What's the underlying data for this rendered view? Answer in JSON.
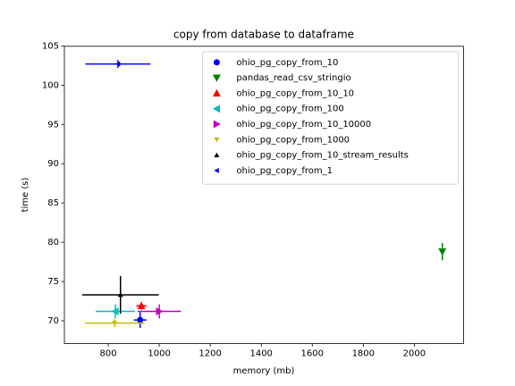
{
  "chart_data": {
    "type": "scatter",
    "title": "copy from database to dataframe",
    "x_label": "memory (mb)",
    "y_label": "time (s)",
    "xlim": [
      628,
      2193
    ],
    "ylim": [
      67.1,
      104.95
    ],
    "xticks": [
      800,
      1000,
      1200,
      1400,
      1600,
      1800,
      2000
    ],
    "yticks": [
      70,
      75,
      80,
      85,
      90,
      95,
      100,
      105
    ],
    "legend": "upper right",
    "grid": false,
    "series": [
      {
        "name": "ohio_pg_copy_from_10",
        "color": "#0000ff",
        "marker": "o",
        "x": [
          925
        ],
        "values": [
          70.1
        ],
        "xerr": [
          25
        ],
        "yerr": [
          1.0
        ]
      },
      {
        "name": "pandas_read_csv_stringio",
        "color": "#008000",
        "marker": "v",
        "x": [
          2110
        ],
        "values": [
          78.8
        ],
        "xerr": [
          8
        ],
        "yerr": [
          1.1
        ]
      },
      {
        "name": "ohio_pg_copy_from_10_10",
        "color": "#ff0000",
        "marker": "^",
        "x": [
          930
        ],
        "values": [
          71.9
        ],
        "xerr": [
          20
        ],
        "yerr": [
          0.5
        ]
      },
      {
        "name": "ohio_pg_copy_from_100",
        "color": "#00bfbf",
        "marker": "<",
        "x": [
          828
        ],
        "values": [
          71.2
        ],
        "xerr": [
          77
        ],
        "yerr": [
          0.9
        ]
      },
      {
        "name": "ohio_pg_copy_from_10_10000",
        "color": "#bf00bf",
        "marker": ">",
        "x": [
          1000
        ],
        "values": [
          71.2
        ],
        "xerr": [
          85
        ],
        "yerr": [
          0.9
        ]
      },
      {
        "name": "ohio_pg_copy_from_1000",
        "color": "#bfbf00",
        "marker": "1",
        "x": [
          825
        ],
        "values": [
          69.7
        ],
        "xerr": [
          117
        ],
        "yerr": [
          0.5
        ]
      },
      {
        "name": "ohio_pg_copy_from_10_stream_results",
        "color": "#000000",
        "marker": "2",
        "x": [
          848
        ],
        "values": [
          73.3
        ],
        "xerr": [
          150
        ],
        "yerr": [
          2.4
        ]
      },
      {
        "name": "ohio_pg_copy_from_1",
        "color": "#0000ff",
        "marker": "3",
        "x": [
          838
        ],
        "values": [
          102.7
        ],
        "xerr": [
          128
        ],
        "yerr": [
          0.5
        ]
      }
    ]
  }
}
